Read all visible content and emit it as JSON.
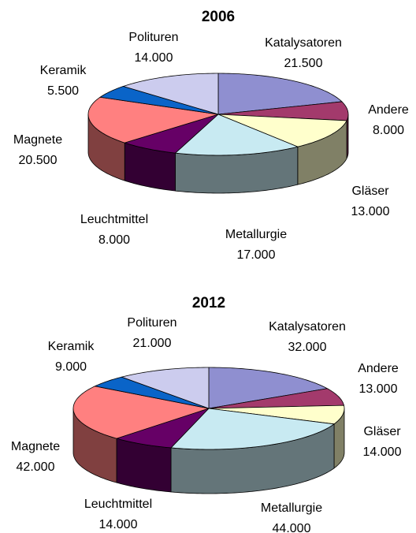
{
  "chart_data": [
    {
      "type": "pie3d",
      "title": "2006",
      "categories": [
        "Katalysatoren",
        "Andere",
        "Gläser",
        "Metallurgie",
        "Leuchtmittel",
        "Magnete",
        "Keramik",
        "Polituren"
      ],
      "values": [
        21500,
        8000,
        13000,
        17000,
        8000,
        20500,
        5500,
        14000
      ],
      "value_labels": [
        "21.500",
        "8.000",
        "13.000",
        "17.000",
        "8.000",
        "20.500",
        "5.500",
        "14.000"
      ],
      "colors": [
        "#8f8fd0",
        "#a33a6c",
        "#ffffcc",
        "#c8eaf2",
        "#660066",
        "#ff8080",
        "#0a64c8",
        "#ccccee"
      ]
    },
    {
      "type": "pie3d",
      "title": "2012",
      "categories": [
        "Katalysatoren",
        "Andere",
        "Gläser",
        "Metallurgie",
        "Leuchtmittel",
        "Magnete",
        "Keramik",
        "Polituren"
      ],
      "values": [
        32000,
        13000,
        14000,
        44000,
        14000,
        42000,
        9000,
        21000
      ],
      "value_labels": [
        "32.000",
        "13.000",
        "14.000",
        "44.000",
        "14.000",
        "42.000",
        "9.000",
        "21.000"
      ],
      "colors": [
        "#8f8fd0",
        "#a33a6c",
        "#ffffcc",
        "#c8eaf2",
        "#660066",
        "#ff8080",
        "#0a64c8",
        "#ccccee"
      ]
    }
  ]
}
